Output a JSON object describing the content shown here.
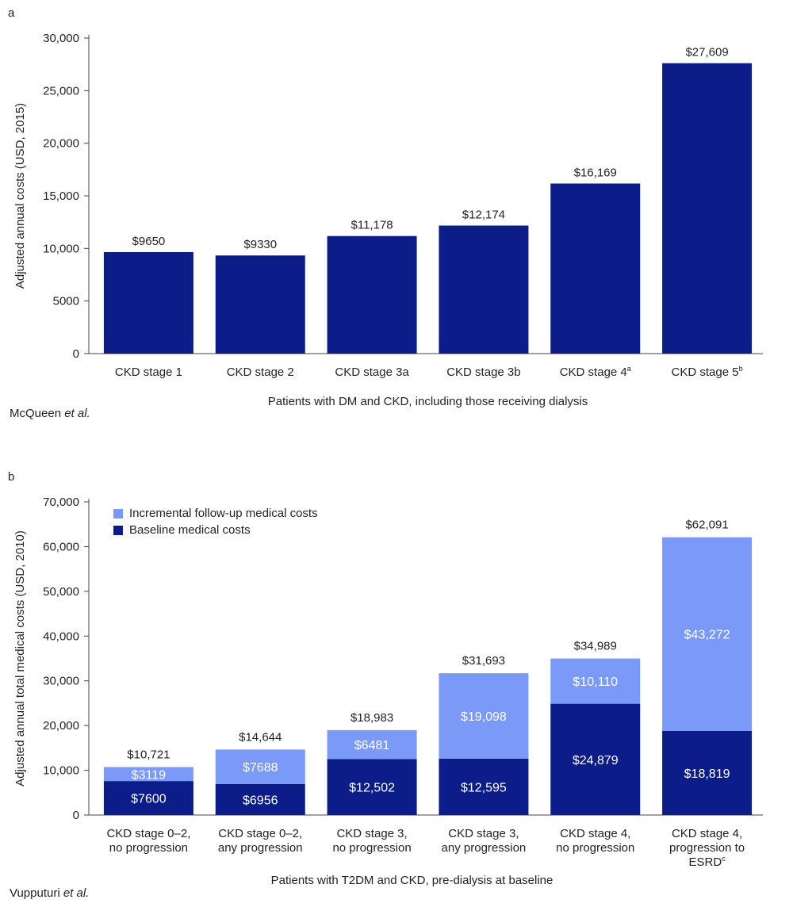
{
  "panels": [
    {
      "letter": "a",
      "source_author": "McQueen",
      "source_etal": "et al.",
      "chart_data": {
        "type": "bar",
        "title": "",
        "xlabel": "Patients with DM and CKD, including those receiving dialysis",
        "ylabel": "Adjusted annual costs (USD, 2015)",
        "ylim": [
          0,
          30000
        ],
        "yticks": [
          0,
          5000,
          10000,
          15000,
          20000,
          25000,
          30000
        ],
        "ytick_labels": [
          "0",
          "5000",
          "10,000",
          "15,000",
          "20,000",
          "25,000",
          "30,000"
        ],
        "categories": [
          {
            "text": "CKD stage 1",
            "sup": ""
          },
          {
            "text": "CKD stage 2",
            "sup": ""
          },
          {
            "text": "CKD stage 3a",
            "sup": ""
          },
          {
            "text": "CKD stage 3b",
            "sup": ""
          },
          {
            "text": "CKD stage 4",
            "sup": "a"
          },
          {
            "text": "CKD stage 5",
            "sup": "b"
          }
        ],
        "values": [
          9650,
          9330,
          11178,
          12174,
          16169,
          27609
        ],
        "value_labels": [
          "$9650",
          "$9330",
          "$11,178",
          "$12,174",
          "$16,169",
          "$27,609"
        ],
        "color": "#0c1d8a",
        "grid": false
      }
    },
    {
      "letter": "b",
      "source_author": "Vupputuri",
      "source_etal": "et al.",
      "chart_data": {
        "type": "bar",
        "stacked": true,
        "title": "",
        "xlabel": "Patients with T2DM and CKD, pre-dialysis at baseline",
        "ylabel": "Adjusted annual total medical costs (USD, 2010)",
        "ylim": [
          0,
          70000
        ],
        "yticks": [
          0,
          10000,
          20000,
          30000,
          40000,
          50000,
          60000,
          70000
        ],
        "ytick_labels": [
          "0",
          "10,000",
          "20,000",
          "30,000",
          "40,000",
          "50,000",
          "60,000",
          "70,000"
        ],
        "categories": [
          {
            "lines": [
              "CKD stage 0–2,",
              "no progression"
            ],
            "sup": ""
          },
          {
            "lines": [
              "CKD stage 0–2,",
              "any progression"
            ],
            "sup": ""
          },
          {
            "lines": [
              "CKD stage 3,",
              "no progression"
            ],
            "sup": ""
          },
          {
            "lines": [
              "CKD stage 3,",
              "any progression"
            ],
            "sup": ""
          },
          {
            "lines": [
              "CKD stage 4,",
              "no progression"
            ],
            "sup": ""
          },
          {
            "lines": [
              "CKD stage 4,",
              "progression to",
              "ESRD"
            ],
            "sup": "c"
          }
        ],
        "series": [
          {
            "name": "Baseline medical costs",
            "color": "#0c1d8a",
            "values": [
              7600,
              6956,
              12502,
              12595,
              24879,
              18819
            ],
            "labels": [
              "$7600",
              "$6956",
              "$12,502",
              "$12,595",
              "$24,879",
              "$18,819"
            ]
          },
          {
            "name": "Incremental follow-up medical costs",
            "color": "#7b9af7",
            "values": [
              3119,
              7688,
              6481,
              19098,
              10110,
              43272
            ],
            "labels": [
              "$3119",
              "$7688",
              "$6481",
              "$19,098",
              "$10,110",
              "$43,272"
            ]
          }
        ],
        "totals": [
          10721,
          14644,
          18983,
          31693,
          34989,
          62091
        ],
        "total_labels": [
          "$10,721",
          "$14,644",
          "$18,983",
          "$31,693",
          "$34,989",
          "$62,091"
        ],
        "legend": {
          "position": "top-left",
          "items": [
            {
              "label": "Incremental follow-up medical costs",
              "color": "#7b9af7"
            },
            {
              "label": "Baseline medical costs",
              "color": "#0c1d8a"
            }
          ]
        },
        "grid": false
      }
    }
  ]
}
